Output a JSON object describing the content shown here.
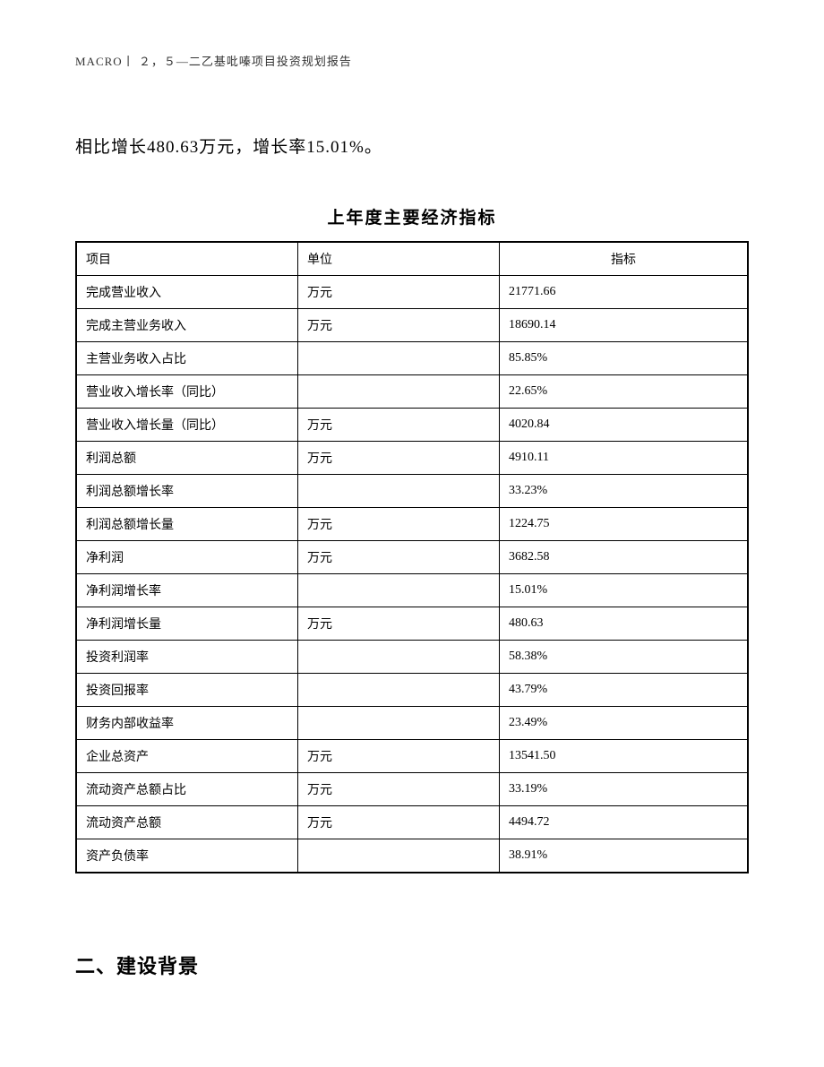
{
  "header": {
    "text": "MACRO丨 ２，５—二乙基吡嗪项目投资规划报告"
  },
  "intro": {
    "text": "相比增长480.63万元，增长率15.01%。"
  },
  "table": {
    "title": "上年度主要经济指标",
    "columns": [
      "项目",
      "单位",
      "指标"
    ],
    "rows": [
      [
        "完成营业收入",
        "万元",
        "21771.66"
      ],
      [
        "完成主营业务收入",
        "万元",
        "18690.14"
      ],
      [
        "主营业务收入占比",
        "",
        "85.85%"
      ],
      [
        "营业收入增长率（同比）",
        "",
        "22.65%"
      ],
      [
        "营业收入增长量（同比）",
        "万元",
        "4020.84"
      ],
      [
        "利润总额",
        "万元",
        "4910.11"
      ],
      [
        "利润总额增长率",
        "",
        "33.23%"
      ],
      [
        "利润总额增长量",
        "万元",
        "1224.75"
      ],
      [
        "净利润",
        "万元",
        "3682.58"
      ],
      [
        "净利润增长率",
        "",
        "15.01%"
      ],
      [
        "净利润增长量",
        "万元",
        "480.63"
      ],
      [
        "投资利润率",
        "",
        "58.38%"
      ],
      [
        "投资回报率",
        "",
        "43.79%"
      ],
      [
        "财务内部收益率",
        "",
        "23.49%"
      ],
      [
        "企业总资产",
        "万元",
        "13541.50"
      ],
      [
        "流动资产总额占比",
        "万元",
        "33.19%"
      ],
      [
        "流动资产总额",
        "万元",
        "4494.72"
      ],
      [
        "资产负债率",
        "",
        "38.91%"
      ]
    ]
  },
  "section": {
    "heading": "二、建设背景"
  }
}
